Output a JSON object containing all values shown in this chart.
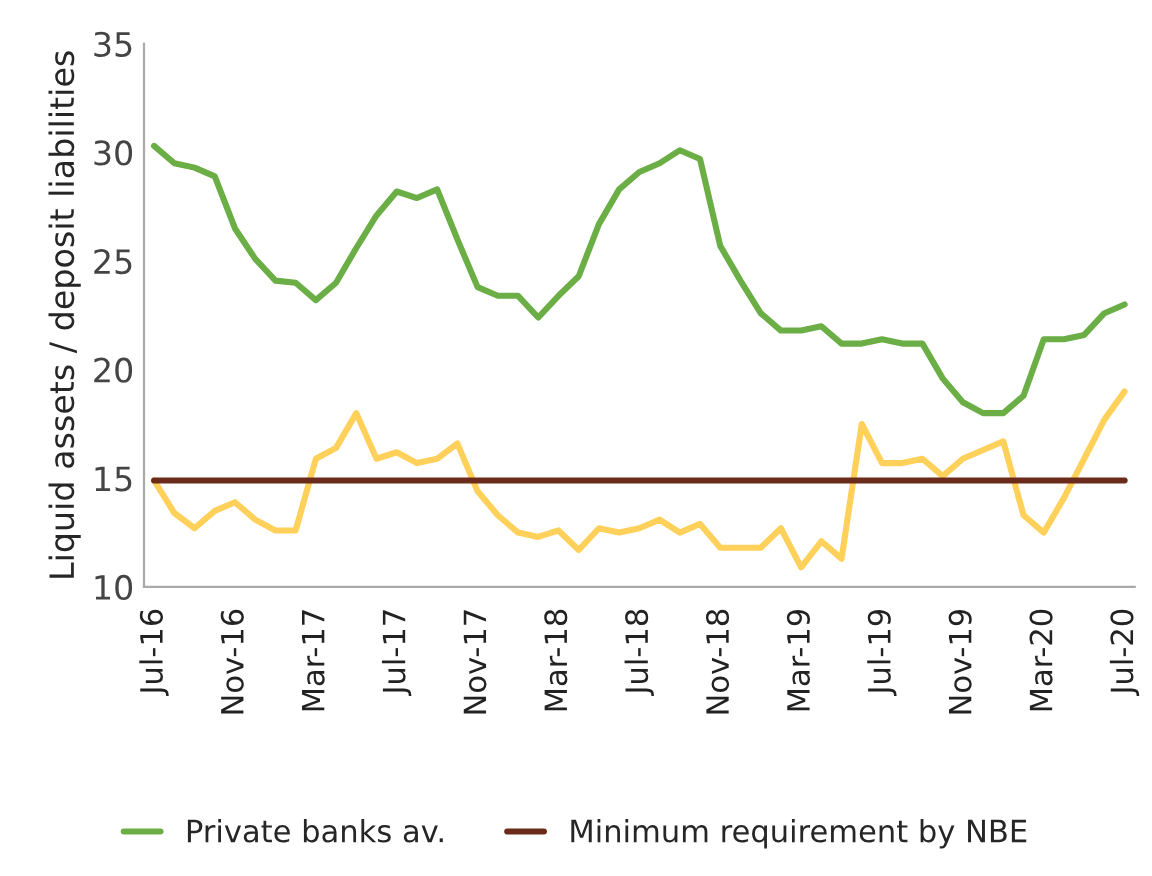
{
  "chart_data": {
    "type": "line",
    "ylabel": "Liquid assets / deposit liabilities",
    "categories": [
      "Jul-16",
      null,
      null,
      null,
      "Nov-16",
      null,
      null,
      null,
      "Mar-17",
      null,
      null,
      null,
      "Jul-17",
      null,
      null,
      null,
      "Nov-17",
      null,
      null,
      null,
      "Mar-18",
      null,
      null,
      null,
      "Jul-18",
      null,
      null,
      null,
      "Nov-18",
      null,
      null,
      null,
      "Mar-19",
      null,
      null,
      null,
      "Jul-19",
      null,
      null,
      null,
      "Nov-19",
      null,
      null,
      null,
      "Mar-20",
      null,
      null,
      null,
      "Jul-20"
    ],
    "series": [
      {
        "name": "Private banks av.",
        "color": "#6aae45",
        "values": [
          30.3,
          29.5,
          29.3,
          28.9,
          26.5,
          25.1,
          24.1,
          24.0,
          23.2,
          24.0,
          25.6,
          27.1,
          28.2,
          27.9,
          28.3,
          26.0,
          23.8,
          23.4,
          23.4,
          22.4,
          23.4,
          24.3,
          26.7,
          28.3,
          29.1,
          29.5,
          30.1,
          29.7,
          25.7,
          24.1,
          22.6,
          21.8,
          21.8,
          22.0,
          21.2,
          21.2,
          21.4,
          21.2,
          21.2,
          19.6,
          18.5,
          18.0,
          18.0,
          18.8,
          21.4,
          21.4,
          21.6,
          22.6,
          23.0
        ]
      },
      {
        "color": "#ffd05a",
        "values": [
          14.9,
          13.4,
          12.7,
          13.5,
          13.9,
          13.1,
          12.6,
          12.6,
          15.9,
          16.4,
          18.0,
          15.9,
          16.2,
          15.7,
          15.9,
          16.6,
          14.4,
          13.3,
          12.5,
          12.3,
          12.6,
          11.7,
          12.7,
          12.5,
          12.7,
          13.1,
          12.5,
          12.9,
          11.8,
          11.8,
          11.8,
          12.7,
          10.9,
          12.1,
          11.3,
          17.5,
          15.7,
          15.7,
          15.9,
          15.1,
          15.9,
          16.3,
          16.7,
          13.3,
          12.5,
          14.1,
          15.9,
          17.7,
          19.0
        ]
      },
      {
        "name": "Minimum requirement by NBE",
        "color": "#6b2b1b",
        "values": [
          14.9,
          14.9,
          14.9,
          14.9,
          14.9,
          14.9,
          14.9,
          14.9,
          14.9,
          14.9,
          14.9,
          14.9,
          14.9,
          14.9,
          14.9,
          14.9,
          14.9,
          14.9,
          14.9,
          14.9,
          14.9,
          14.9,
          14.9,
          14.9,
          14.9,
          14.9,
          14.9,
          14.9,
          14.9,
          14.9,
          14.9,
          14.9,
          14.9,
          14.9,
          14.9,
          14.9,
          14.9,
          14.9,
          14.9,
          14.9,
          14.9,
          14.9,
          14.9,
          14.9,
          14.9,
          14.9,
          14.9,
          14.9,
          14.9
        ]
      }
    ],
    "ylim": [
      10,
      35
    ],
    "yticks": [
      10,
      15,
      20,
      25,
      30,
      35
    ],
    "legend": "bottom",
    "grid": false,
    "marker": "none",
    "line_style": "solid"
  }
}
